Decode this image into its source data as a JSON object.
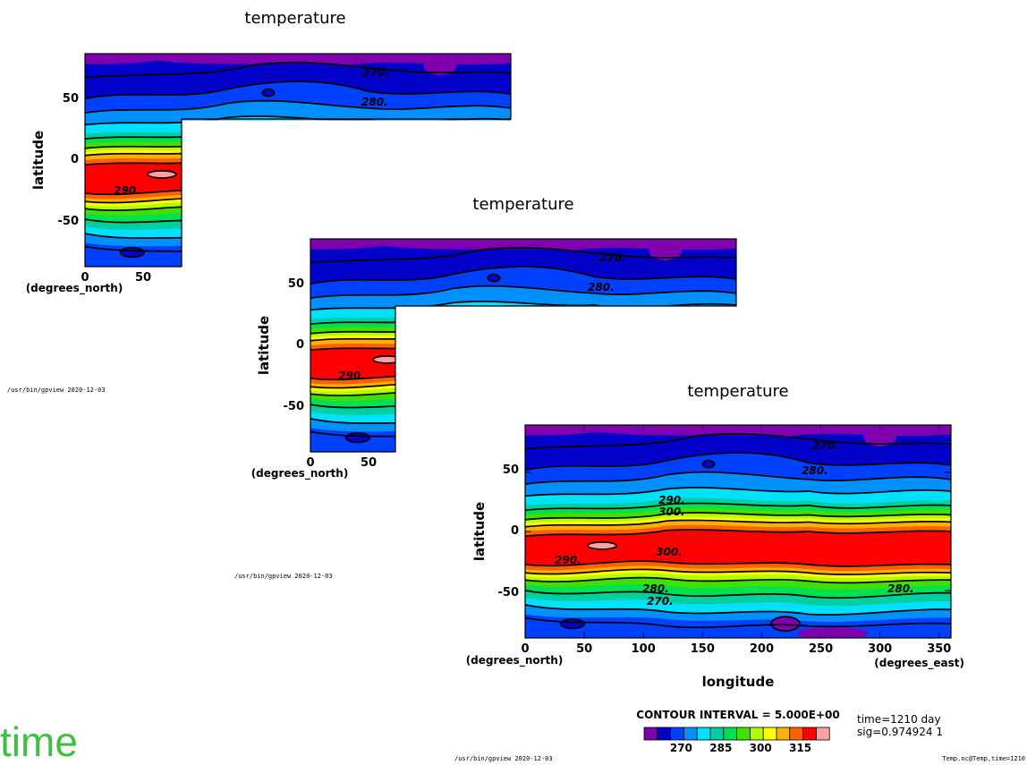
{
  "app": {
    "watermark": "time"
  },
  "footer": {
    "path_stamp": "/usr/bin/gpview  2020-12-03",
    "file_stamp": "Temp.nc@Temp,time=1210"
  },
  "colorbar": {
    "interval_label": "CONTOUR INTERVAL = 5.000E+00",
    "colors": [
      "#8000b0",
      "#0000c8",
      "#0040ff",
      "#0090ff",
      "#00e0ff",
      "#00d0a0",
      "#00e050",
      "#40e000",
      "#b0ff00",
      "#ffff00",
      "#ffb000",
      "#ff6000",
      "#ff0000",
      "#ffa0a0"
    ],
    "labels": [
      "270",
      "285",
      "300",
      "315"
    ]
  },
  "info": {
    "time": "time=1210 day",
    "sig": "sig=0.974924 1"
  },
  "chart_data": [
    {
      "type": "heatmap",
      "title": "temperature",
      "ylabel": "latitude",
      "xlabel": "",
      "x_unit": "(degrees_north)",
      "x_ticks": [
        "0",
        "50"
      ],
      "y_ticks": [
        "50",
        "0",
        "-50"
      ],
      "xlim": [
        0,
        360
      ],
      "ylim": [
        -90,
        90
      ],
      "contour_labels": [
        "270.",
        "280.",
        "290."
      ]
    },
    {
      "type": "heatmap",
      "title": "temperature",
      "ylabel": "latitude",
      "xlabel": "",
      "x_unit": "(degrees_north)",
      "x_ticks": [
        "0",
        "50"
      ],
      "y_ticks": [
        "50",
        "0",
        "-50"
      ],
      "xlim": [
        0,
        360
      ],
      "ylim": [
        -90,
        90
      ],
      "contour_labels": [
        "270.",
        "280.",
        "290."
      ]
    },
    {
      "type": "heatmap",
      "title": "temperature",
      "ylabel": "latitude",
      "xlabel": "longitude",
      "x_unit_left": "(degrees_north)",
      "x_unit_right": "(degrees_east)",
      "x_ticks": [
        "0",
        "50",
        "100",
        "150",
        "200",
        "250",
        "300",
        "350"
      ],
      "y_ticks": [
        "50",
        "0",
        "-50"
      ],
      "xlim": [
        0,
        360
      ],
      "ylim": [
        -90,
        90
      ],
      "contour_interval": 5,
      "value_range": [
        265,
        320
      ],
      "contour_labels": [
        "270.",
        "280.",
        "290.",
        "300.",
        "300.",
        "290.",
        "280.",
        "270.",
        "280."
      ]
    }
  ]
}
